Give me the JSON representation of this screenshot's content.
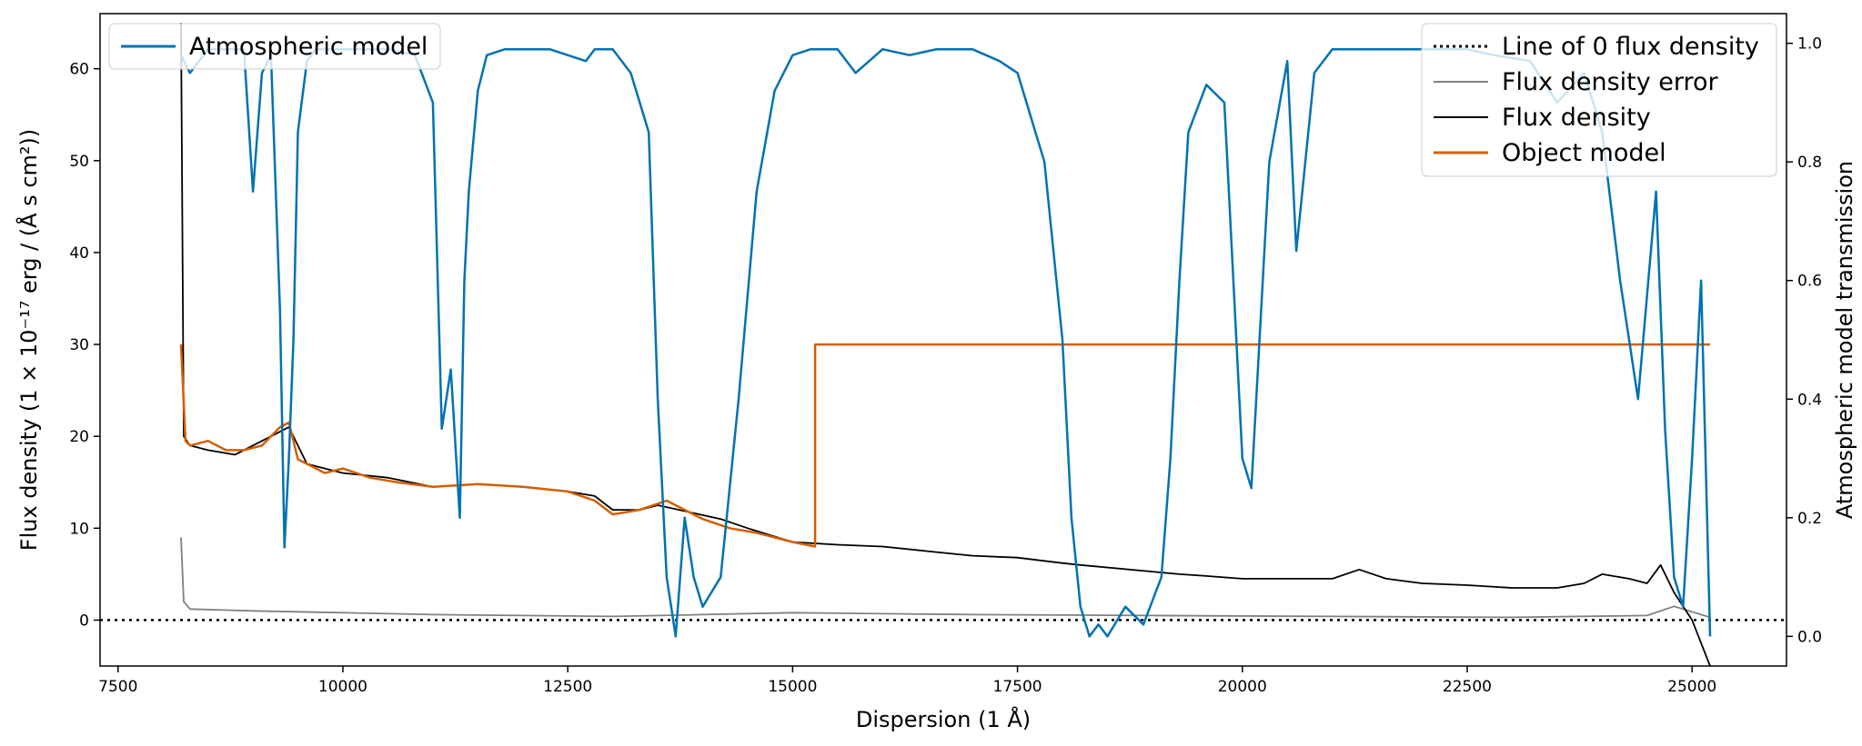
{
  "chart_data": {
    "type": "line",
    "xlabel": "Dispersion (1 Å)",
    "ylabel_left": "Flux density (1 × 10⁻¹⁷ erg / (Å s cm²))",
    "ylabel_right": "Atmospheric model transmission",
    "xlim": [
      7300,
      26050
    ],
    "ylim_left": [
      -5,
      66
    ],
    "ylim_right": [
      -0.05,
      1.05
    ],
    "x_ticks": [
      7500,
      10000,
      12500,
      15000,
      17500,
      20000,
      22500,
      25000
    ],
    "y_ticks_left": [
      0,
      10,
      20,
      30,
      40,
      50,
      60
    ],
    "y_ticks_right": [
      0.0,
      0.2,
      0.4,
      0.6,
      0.8,
      1.0
    ],
    "grid": false,
    "legend_left": {
      "placement": "top-left",
      "entries": [
        "Atmospheric model"
      ]
    },
    "legend_right": {
      "placement": "top-right",
      "entries": [
        "Line of 0 flux density",
        "Flux density error",
        "Flux density",
        "Object model"
      ]
    },
    "colors": {
      "atmospheric": "#0072b2",
      "flux": "#000000",
      "error": "#808080",
      "model": "#d55e00",
      "zero": "#000000"
    },
    "series": [
      {
        "name": "Atmospheric model",
        "axis": "right",
        "x": [
          8200,
          8300,
          8500,
          8700,
          8900,
          9000,
          9100,
          9200,
          9300,
          9350,
          9400,
          9450,
          9500,
          9600,
          9700,
          9800,
          10000,
          10200,
          10500,
          10800,
          11000,
          11100,
          11200,
          11300,
          11350,
          11400,
          11500,
          11600,
          11800,
          12000,
          12300,
          12500,
          12700,
          12800,
          13000,
          13200,
          13400,
          13500,
          13600,
          13700,
          13800,
          13900,
          14000,
          14200,
          14400,
          14600,
          14800,
          15000,
          15200,
          15500,
          15700,
          16000,
          16300,
          16600,
          17000,
          17300,
          17500,
          17600,
          17800,
          18000,
          18100,
          18200,
          18300,
          18400,
          18500,
          18700,
          18900,
          19100,
          19200,
          19300,
          19400,
          19600,
          19800,
          20000,
          20100,
          20300,
          20500,
          20600,
          20800,
          21000,
          21500,
          22000,
          22500,
          22800,
          23200,
          23500,
          23800,
          24000,
          24200,
          24400,
          24600,
          24700,
          24800,
          24900,
          25000,
          25100,
          25200
        ],
        "y": [
          0.98,
          0.95,
          0.99,
          0.99,
          0.99,
          0.75,
          0.95,
          0.98,
          0.55,
          0.15,
          0.3,
          0.5,
          0.85,
          0.97,
          0.99,
          0.99,
          0.99,
          0.99,
          0.99,
          0.98,
          0.9,
          0.35,
          0.45,
          0.2,
          0.6,
          0.75,
          0.92,
          0.98,
          0.99,
          0.99,
          0.99,
          0.98,
          0.97,
          0.99,
          0.99,
          0.95,
          0.85,
          0.4,
          0.1,
          0.0,
          0.2,
          0.1,
          0.05,
          0.1,
          0.4,
          0.75,
          0.92,
          0.98,
          0.99,
          0.99,
          0.95,
          0.99,
          0.98,
          0.99,
          0.99,
          0.97,
          0.95,
          0.9,
          0.8,
          0.5,
          0.2,
          0.05,
          0.0,
          0.02,
          0.0,
          0.05,
          0.02,
          0.1,
          0.3,
          0.6,
          0.85,
          0.93,
          0.9,
          0.3,
          0.25,
          0.8,
          0.97,
          0.65,
          0.95,
          0.99,
          0.99,
          0.99,
          0.99,
          0.98,
          0.97,
          0.9,
          0.95,
          0.85,
          0.6,
          0.4,
          0.75,
          0.35,
          0.1,
          0.05,
          0.3,
          0.6,
          0.0
        ]
      },
      {
        "name": "Object model",
        "axis": "left",
        "x": [
          8200,
          8250,
          8300,
          8500,
          8700,
          8900,
          9100,
          9300,
          9400,
          9500,
          9600,
          9800,
          10000,
          10300,
          10600,
          11000,
          11500,
          12000,
          12500,
          12800,
          13000,
          13300,
          13600,
          13800,
          14000,
          14300,
          14600,
          15000,
          15250,
          15250,
          25200
        ],
        "y": [
          30,
          19.5,
          19,
          19.5,
          18.5,
          18.5,
          19,
          21,
          21.5,
          17.5,
          17,
          16,
          16.5,
          15.5,
          15,
          14.5,
          14.8,
          14.5,
          14,
          13,
          11.5,
          12,
          13,
          12,
          11,
          10,
          9.5,
          8.5,
          8,
          30,
          30
        ]
      },
      {
        "name": "Flux density",
        "axis": "left",
        "x": [
          8200,
          8230,
          8300,
          8500,
          8800,
          9000,
          9200,
          9400,
          9600,
          9800,
          10000,
          10500,
          11000,
          11500,
          12000,
          12500,
          12800,
          13000,
          13300,
          13500,
          14200,
          14500,
          15000,
          15500,
          16000,
          16500,
          17000,
          17500,
          18000,
          18200,
          19300,
          19600,
          20000,
          20500,
          21000,
          21300,
          21600,
          22000,
          22500,
          23000,
          23500,
          23800,
          24000,
          24300,
          24500,
          24650,
          24800,
          25000,
          25200
        ],
        "y": [
          65,
          20,
          19,
          18.5,
          18,
          19,
          20,
          21,
          17,
          16.5,
          16,
          15.5,
          14.5,
          14.8,
          14.5,
          14,
          13.5,
          12,
          12,
          12.5,
          11,
          10,
          8.5,
          8.2,
          8,
          7.5,
          7,
          6.8,
          6.2,
          6,
          5,
          4.8,
          4.5,
          4.5,
          4.5,
          5.5,
          4.5,
          4,
          3.8,
          3.5,
          3.5,
          4,
          5,
          4.5,
          4,
          6,
          3,
          0,
          -5
        ]
      },
      {
        "name": "Flux density error",
        "axis": "left",
        "x": [
          8200,
          8230,
          8300,
          9000,
          10000,
          11000,
          12000,
          13000,
          14000,
          15000,
          17000,
          19000,
          21000,
          23000,
          24500,
          24800,
          25200
        ],
        "y": [
          9,
          2,
          1.2,
          1,
          0.8,
          0.6,
          0.5,
          0.4,
          0.6,
          0.8,
          0.6,
          0.5,
          0.4,
          0.3,
          0.5,
          1.5,
          0.3
        ]
      },
      {
        "name": "Line of 0 flux density",
        "axis": "left",
        "x": [
          7300,
          26050
        ],
        "y": [
          0,
          0
        ]
      }
    ]
  }
}
